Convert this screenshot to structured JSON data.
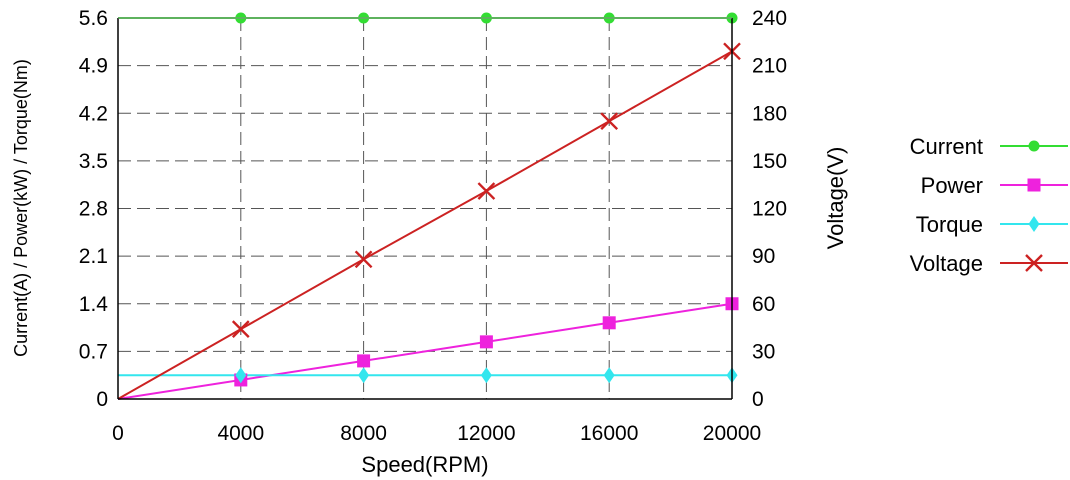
{
  "chart_data": {
    "type": "line",
    "xlabel": "Speed(RPM)",
    "ylabel_left": "Current(A) / Power(kW) / Torque(Nm)",
    "ylabel_right": "Voltage(V)",
    "x_ticks": [
      "0",
      "4000",
      "8000",
      "12000",
      "16000",
      "20000"
    ],
    "y_left_ticks": [
      "0",
      "0.7",
      "1.4",
      "2.1",
      "2.8",
      "3.5",
      "4.2",
      "4.9",
      "5.6"
    ],
    "y_right_ticks": [
      "0",
      "30",
      "60",
      "90",
      "120",
      "150",
      "180",
      "210",
      "240"
    ],
    "xlim": [
      0,
      20000
    ],
    "ylim_left": [
      0,
      5.6
    ],
    "ylim_right": [
      0,
      240
    ],
    "grid": "dashed",
    "legend_position": "right",
    "series": [
      {
        "name": "Current",
        "axis": "left",
        "color": "#33dd33",
        "marker": "circle",
        "x": [
          0,
          4000,
          8000,
          12000,
          16000,
          20000
        ],
        "y": [
          5.6,
          5.6,
          5.6,
          5.6,
          5.6,
          5.6
        ],
        "marker_x": [
          4000,
          8000,
          12000,
          16000,
          20000
        ]
      },
      {
        "name": "Power",
        "axis": "left",
        "color": "#ee22dd",
        "marker": "square",
        "x": [
          0,
          4000,
          8000,
          12000,
          16000,
          20000
        ],
        "y": [
          0,
          0.28,
          0.56,
          0.84,
          1.12,
          1.4
        ],
        "marker_x": [
          4000,
          8000,
          12000,
          16000,
          20000
        ]
      },
      {
        "name": "Torque",
        "axis": "left",
        "color": "#33e6ee",
        "marker": "diamond",
        "x": [
          0,
          4000,
          8000,
          12000,
          16000,
          20000
        ],
        "y": [
          0.35,
          0.35,
          0.35,
          0.35,
          0.35,
          0.35
        ],
        "marker_x": [
          4000,
          8000,
          12000,
          16000,
          20000
        ]
      },
      {
        "name": "Voltage",
        "axis": "right",
        "color": "#cc2222",
        "marker": "x",
        "x": [
          0,
          4000,
          8000,
          12000,
          16000,
          20000
        ],
        "y": [
          0,
          44,
          88,
          131,
          175,
          219
        ],
        "marker_x": [
          4000,
          8000,
          12000,
          16000,
          20000
        ]
      }
    ]
  }
}
